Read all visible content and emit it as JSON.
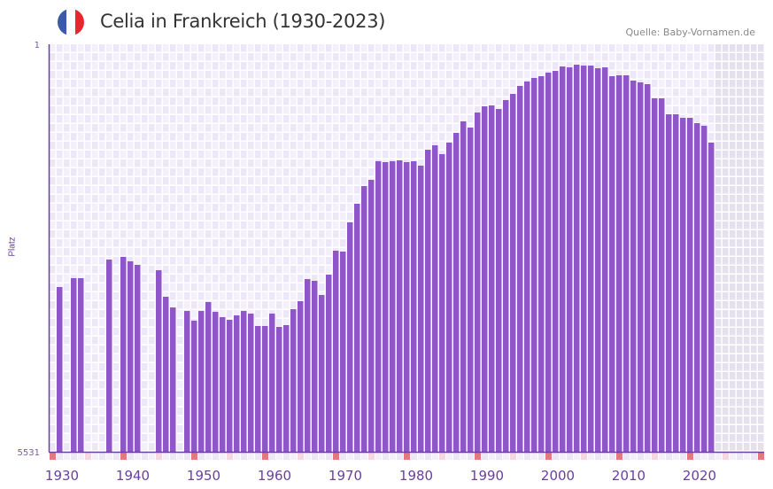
{
  "header": {
    "title": "Celia in Frankreich (1930-2023)",
    "source": "Quelle: Baby-Vornamen.de",
    "flag_icon": "france-flag-icon",
    "flag_colors": [
      "#3b5ba8",
      "#ffffff",
      "#e8262f"
    ]
  },
  "colors": {
    "bar": "#8e56c8",
    "grid_cell_a": "#f3f0fb",
    "grid_cell_b": "#ece7f7",
    "future_cell": "#e4e0ec",
    "decade_marker": "#e8767c",
    "halfdecade_marker": "#f6d6df",
    "axis": "#6a3fa0"
  },
  "chart_data": {
    "type": "bar",
    "title": "Celia in Frankreich (1930-2023)",
    "xlabel": "",
    "ylabel": "Platz",
    "ylim": [
      5531,
      1
    ],
    "y_tick_labels": [
      "1",
      "5531"
    ],
    "x_tick_labels": [
      "1930",
      "1940",
      "1950",
      "1960",
      "1970",
      "1980",
      "1990",
      "2000",
      "2010",
      "2020"
    ],
    "xlim": [
      1929,
      2029
    ],
    "future_from": 2023,
    "x": [
      1930,
      1931,
      1932,
      1933,
      1934,
      1935,
      1936,
      1937,
      1938,
      1939,
      1940,
      1941,
      1942,
      1943,
      1944,
      1945,
      1946,
      1947,
      1948,
      1949,
      1950,
      1951,
      1952,
      1953,
      1954,
      1955,
      1956,
      1957,
      1958,
      1959,
      1960,
      1961,
      1962,
      1963,
      1964,
      1965,
      1966,
      1967,
      1968,
      1969,
      1970,
      1971,
      1972,
      1973,
      1974,
      1975,
      1976,
      1977,
      1978,
      1979,
      1980,
      1981,
      1982,
      1983,
      1984,
      1985,
      1986,
      1987,
      1988,
      1989,
      1990,
      1991,
      1992,
      1993,
      1994,
      1995,
      1996,
      1997,
      1998,
      1999,
      2000,
      2001,
      2002,
      2003,
      2004,
      2005,
      2006,
      2007,
      2008,
      2009,
      2010,
      2011,
      2012,
      2013,
      2014,
      2015,
      2016,
      2017,
      2018,
      2019,
      2020,
      2021,
      2022
    ],
    "values": [
      3295,
      null,
      3175,
      3175,
      null,
      null,
      null,
      2922,
      null,
      2886,
      2946,
      2994,
      null,
      null,
      3067,
      3427,
      3572,
      null,
      3620,
      3752,
      3620,
      3499,
      3632,
      3704,
      3740,
      3680,
      3620,
      3656,
      3824,
      3824,
      3656,
      3836,
      3812,
      3596,
      3487,
      3187,
      3211,
      3403,
      3127,
      2802,
      2814,
      2417,
      2165,
      1925,
      1840,
      1588,
      1600,
      1588,
      1576,
      1600,
      1588,
      1648,
      1432,
      1372,
      1492,
      1335,
      1203,
      1047,
      1131,
      927,
      843,
      831,
      879,
      758,
      674,
      566,
      506,
      458,
      434,
      386,
      362,
      302,
      314,
      278,
      290,
      290,
      326,
      314,
      434,
      422,
      422,
      494,
      518,
      542,
      734,
      734,
      951,
      951,
      999,
      999,
      1071,
      1107,
      1335
    ]
  }
}
